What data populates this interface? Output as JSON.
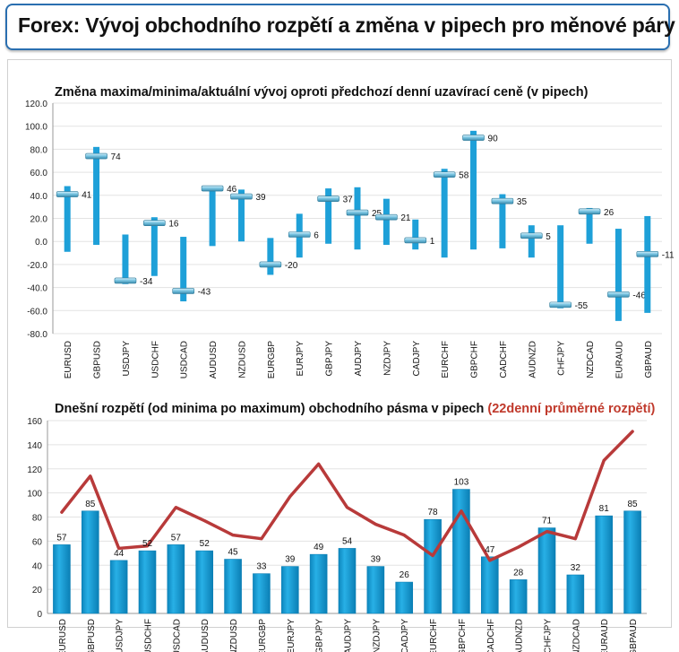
{
  "page": {
    "title": "Forex: Vývoj obchodního rozpětí a změna v pipech pro měnové páry"
  },
  "colors": {
    "bar": "#1ea0d8",
    "bar_dark": "#0b7fb5",
    "line": "#b83a3a",
    "accent_red": "#c0392b",
    "header_border": "#2a6fb0"
  },
  "chart_data": [
    {
      "type": "bar",
      "subtype": "range-with-marker",
      "title": "Změna maxima/minima/aktuální vývoj oproti předchozí denní uzavírací ceně (v pipech)",
      "categories": [
        "EURUSD",
        "GBPUSD",
        "USDJPY",
        "USDCHF",
        "USDCAD",
        "AUDUSD",
        "NZDUSD",
        "EURGBP",
        "EURJPY",
        "GBPJPY",
        "AUDJPY",
        "NZDJPY",
        "CADJPY",
        "EURCHF",
        "GBPCHF",
        "CADCHF",
        "AUDNZD",
        "CHFJPY",
        "NZDCAD",
        "EURAUD",
        "GBPAUD"
      ],
      "series": [
        {
          "role": "high",
          "values": [
            48,
            82,
            6,
            21,
            4,
            47,
            45,
            3,
            24,
            46,
            47,
            37,
            19,
            63,
            96,
            41,
            14,
            14,
            29,
            11,
            22
          ]
        },
        {
          "role": "low",
          "values": [
            -9,
            -3,
            -37,
            -30,
            -52,
            -4,
            0,
            -29,
            -14,
            -2,
            -7,
            -3,
            -7,
            -14,
            -7,
            -6,
            -14,
            -58,
            -2,
            -69,
            -62
          ]
        },
        {
          "role": "current",
          "values": [
            41,
            74,
            -34,
            16,
            -43,
            46,
            39,
            -20,
            6,
            37,
            25,
            21,
            1,
            58,
            90,
            35,
            5,
            -55,
            26,
            -46,
            -11
          ]
        }
      ],
      "ylim": [
        -80,
        120
      ],
      "yticks": [
        "-80.0",
        "-60.0",
        "-40.0",
        "-20.0",
        "0.0",
        "20.0",
        "40.0",
        "60.0",
        "80.0",
        "100.0",
        "120.0"
      ],
      "grid": true
    },
    {
      "type": "bar",
      "title": "Dnešní rozpětí (od minima po maximum) obchodního pásma v pipech",
      "title_highlight": "(22denní průměrné rozpětí)",
      "categories": [
        "EURUSD",
        "GBPUSD",
        "USDJPY",
        "USDCHF",
        "USDCAD",
        "AUDUSD",
        "NZDUSD",
        "EURGBP",
        "EURJPY",
        "GBPJPY",
        "AUDJPY",
        "NZDJPY",
        "CADJPY",
        "EURCHF",
        "GBPCHF",
        "CADCHF",
        "AUDNZD",
        "CHFJPY",
        "NZDCAD",
        "EURAUD",
        "GBPAUD"
      ],
      "series": [
        {
          "type": "bar",
          "values": [
            57,
            85,
            44,
            52,
            57,
            52,
            45,
            33,
            39,
            49,
            54,
            39,
            26,
            78,
            103,
            47,
            28,
            71,
            32,
            81,
            85
          ]
        },
        {
          "type": "line",
          "values": [
            84,
            114,
            54,
            56,
            88,
            77,
            65,
            62,
            97,
            124,
            88,
            74,
            65,
            48,
            85,
            44,
            55,
            68,
            62,
            127,
            151
          ]
        }
      ],
      "ylim": [
        0,
        160
      ],
      "yticks": [
        "0",
        "20",
        "40",
        "60",
        "80",
        "100",
        "120",
        "140",
        "160"
      ],
      "grid": true
    }
  ]
}
